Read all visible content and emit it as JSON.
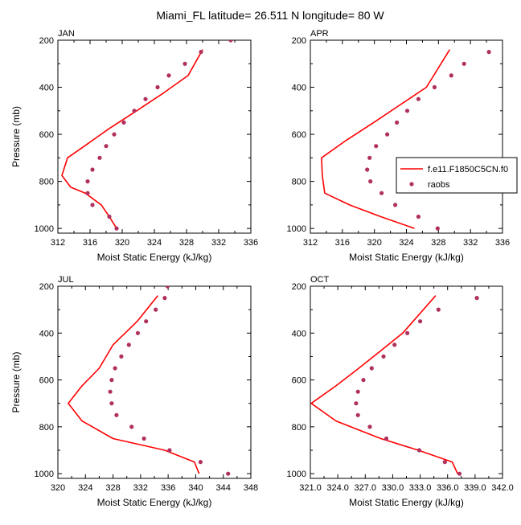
{
  "title": "Miami_FL  latitude= 26.511 N longitude= 80 W",
  "colors": {
    "model": "#ff0000",
    "obs": "#b03060"
  },
  "legend": {
    "model_label": "f.e11.F1850C5CN.f0",
    "obs_label": "raobs"
  },
  "chart_data": [
    {
      "type": "line",
      "panel_label": "JAN",
      "xlabel": "Moist Static Energy (kJ/kg)",
      "ylabel": "Pressure (mb)",
      "xlim": [
        312,
        336
      ],
      "ylim": [
        200,
        1020
      ],
      "y_inverted": true,
      "xticks": [
        "312",
        "316",
        "320",
        "324",
        "328",
        "332",
        "336"
      ],
      "yticks": [
        "200",
        "400",
        "600",
        "800",
        "1000"
      ],
      "series": [
        {
          "name": "f.e11.F1850C5CN.f0",
          "kind": "line",
          "x": [
            319.3,
            318.4,
            317.4,
            315.4,
            313.6,
            312.5,
            313.2,
            315.3,
            318.4,
            321.8,
            325.1,
            328.2,
            330.0
          ],
          "y": [
            1000,
            950,
            900,
            850,
            825,
            775,
            700,
            650,
            575,
            500,
            425,
            350,
            240
          ]
        },
        {
          "name": "raobs",
          "kind": "points",
          "x": [
            319.3,
            318.4,
            316.3,
            315.7,
            315.7,
            316.3,
            317.2,
            318.0,
            319.0,
            320.2,
            321.5,
            322.9,
            324.4,
            325.8,
            327.8,
            329.8,
            333.5
          ],
          "y": [
            1000,
            950,
            900,
            850,
            800,
            750,
            700,
            650,
            600,
            550,
            500,
            450,
            400,
            350,
            300,
            250,
            200
          ]
        }
      ]
    },
    {
      "type": "line",
      "panel_label": "APR",
      "xlabel": "Moist Static Energy (kJ/kg)",
      "ylabel": "",
      "xlim": [
        312,
        336
      ],
      "ylim": [
        200,
        1020
      ],
      "y_inverted": true,
      "xticks": [
        "312",
        "316",
        "320",
        "324",
        "328",
        "332",
        "336"
      ],
      "yticks": [
        "200",
        "400",
        "600",
        "800",
        "1000"
      ],
      "series": [
        {
          "name": "f.e11.F1850C5CN.f0",
          "kind": "line",
          "x": [
            325.0,
            320.8,
            316.9,
            313.8,
            313.5,
            313.4,
            316.5,
            319.9,
            323.2,
            326.5,
            329.4
          ],
          "y": [
            1000,
            950,
            900,
            850,
            775,
            700,
            625,
            550,
            475,
            400,
            240
          ]
        },
        {
          "name": "raobs",
          "kind": "points",
          "x": [
            327.9,
            325.5,
            322.6,
            320.9,
            319.5,
            319.1,
            319.4,
            320.2,
            321.6,
            322.8,
            324.1,
            325.5,
            327.5,
            329.6,
            331.2,
            334.3
          ],
          "y": [
            1000,
            950,
            900,
            850,
            800,
            750,
            700,
            650,
            600,
            550,
            500,
            450,
            400,
            350,
            300,
            250
          ]
        }
      ]
    },
    {
      "type": "line",
      "panel_label": "JUL",
      "xlabel": "Moist Static Energy (kJ/kg)",
      "ylabel": "Pressure (mb)",
      "xlim": [
        320,
        348
      ],
      "ylim": [
        200,
        1020
      ],
      "y_inverted": true,
      "xticks": [
        "320",
        "324",
        "328",
        "332",
        "336",
        "340",
        "344",
        "348"
      ],
      "yticks": [
        "200",
        "400",
        "600",
        "800",
        "1000"
      ],
      "series": [
        {
          "name": "f.e11.F1850C5CN.f0",
          "kind": "line",
          "x": [
            340.5,
            339.8,
            335.5,
            328.0,
            323.5,
            321.5,
            323.5,
            326.0,
            328.0,
            331.5,
            334.5
          ],
          "y": [
            1000,
            950,
            900,
            850,
            775,
            700,
            625,
            550,
            450,
            350,
            240
          ]
        },
        {
          "name": "raobs",
          "kind": "points",
          "x": [
            344.7,
            340.7,
            336.2,
            332.5,
            330.7,
            328.5,
            327.8,
            327.6,
            327.8,
            328.3,
            329.2,
            330.3,
            331.6,
            332.8,
            334.2,
            335.5,
            335.9
          ],
          "y": [
            1000,
            950,
            900,
            850,
            800,
            750,
            700,
            650,
            600,
            550,
            500,
            450,
            400,
            350,
            300,
            250,
            200
          ]
        }
      ]
    },
    {
      "type": "line",
      "panel_label": "OCT",
      "xlabel": "Moist Static Energy (kJ/kg)",
      "ylabel": "",
      "xlim": [
        321,
        342
      ],
      "ylim": [
        200,
        1020
      ],
      "y_inverted": true,
      "xticks": [
        "321.0",
        "324.0",
        "327.0",
        "330.0",
        "333.0",
        "336.0",
        "339.0",
        "342.0"
      ],
      "yticks": [
        "200",
        "400",
        "600",
        "800",
        "1000"
      ],
      "series": [
        {
          "name": "f.e11.F1850C5CN.f0",
          "kind": "line",
          "x": [
            337.1,
            336.5,
            332.8,
            328.7,
            323.8,
            321.1,
            323.8,
            326.3,
            328.7,
            331.1,
            334.7
          ],
          "y": [
            1000,
            950,
            900,
            850,
            775,
            700,
            625,
            550,
            475,
            400,
            240
          ]
        },
        {
          "name": "raobs",
          "kind": "points",
          "x": [
            337.3,
            335.7,
            332.9,
            329.3,
            327.5,
            326.2,
            326.0,
            326.2,
            326.8,
            327.7,
            329.0,
            330.2,
            331.6,
            333.0,
            335.0,
            339.2
          ],
          "y": [
            1000,
            950,
            900,
            850,
            800,
            750,
            700,
            650,
            600,
            550,
            500,
            450,
            400,
            350,
            300,
            250
          ]
        }
      ]
    }
  ]
}
